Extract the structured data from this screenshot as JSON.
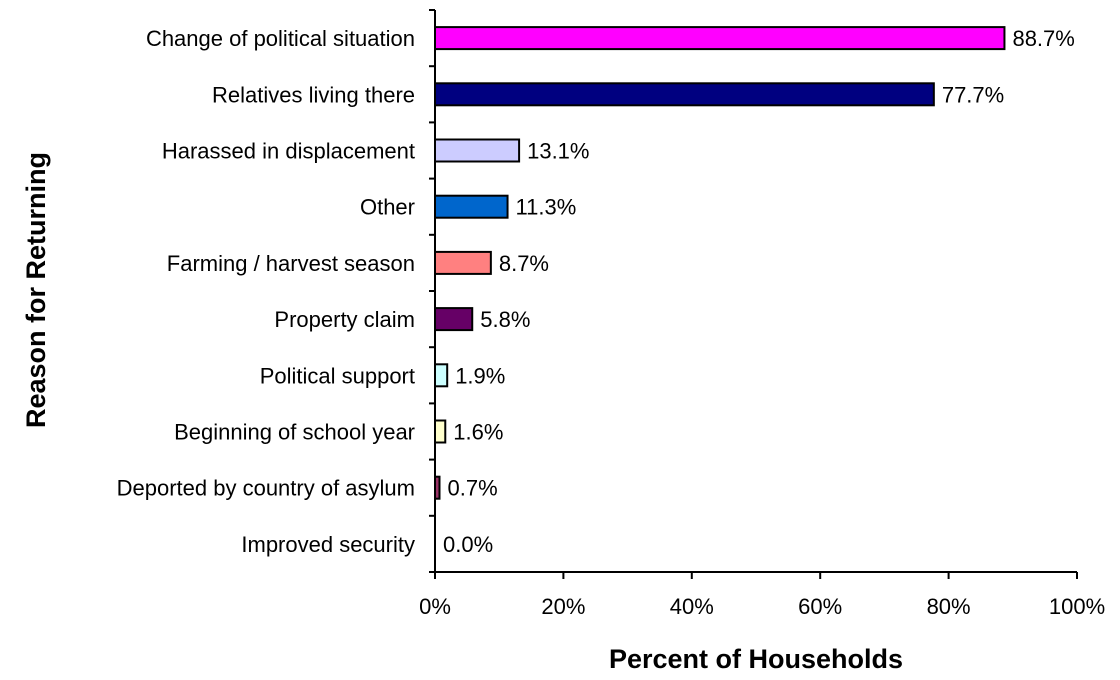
{
  "chart_data": {
    "type": "bar",
    "orientation": "horizontal",
    "title": "",
    "xlabel": "Percent of Households",
    "ylabel": "Reason for Returning",
    "xlim": [
      0,
      100
    ],
    "x_ticks": [
      0,
      20,
      40,
      60,
      80,
      100
    ],
    "x_tick_labels": [
      "0%",
      "20%",
      "40%",
      "60%",
      "80%",
      "100%"
    ],
    "grid": false,
    "legend": "none",
    "categories": [
      "Change of political situation",
      "Relatives living there",
      "Harassed in displacement",
      "Other",
      "Farming / harvest season",
      "Property claim",
      "Political support",
      "Beginning of school year",
      "Deported by country of asylum",
      "Improved security"
    ],
    "values": [
      88.7,
      77.7,
      13.1,
      11.3,
      8.7,
      5.8,
      1.9,
      1.6,
      0.7,
      0.0
    ],
    "value_labels": [
      "88.7%",
      "77.7%",
      "13.1%",
      "11.3%",
      "8.7%",
      "5.8%",
      "1.9%",
      "1.6%",
      "0.7%",
      "0.0%"
    ],
    "colors": [
      "#ff00ff",
      "#000080",
      "#ccccff",
      "#0066cc",
      "#ff8080",
      "#660066",
      "#ccffff",
      "#ffffcc",
      "#993366",
      "#ffffff"
    ]
  }
}
